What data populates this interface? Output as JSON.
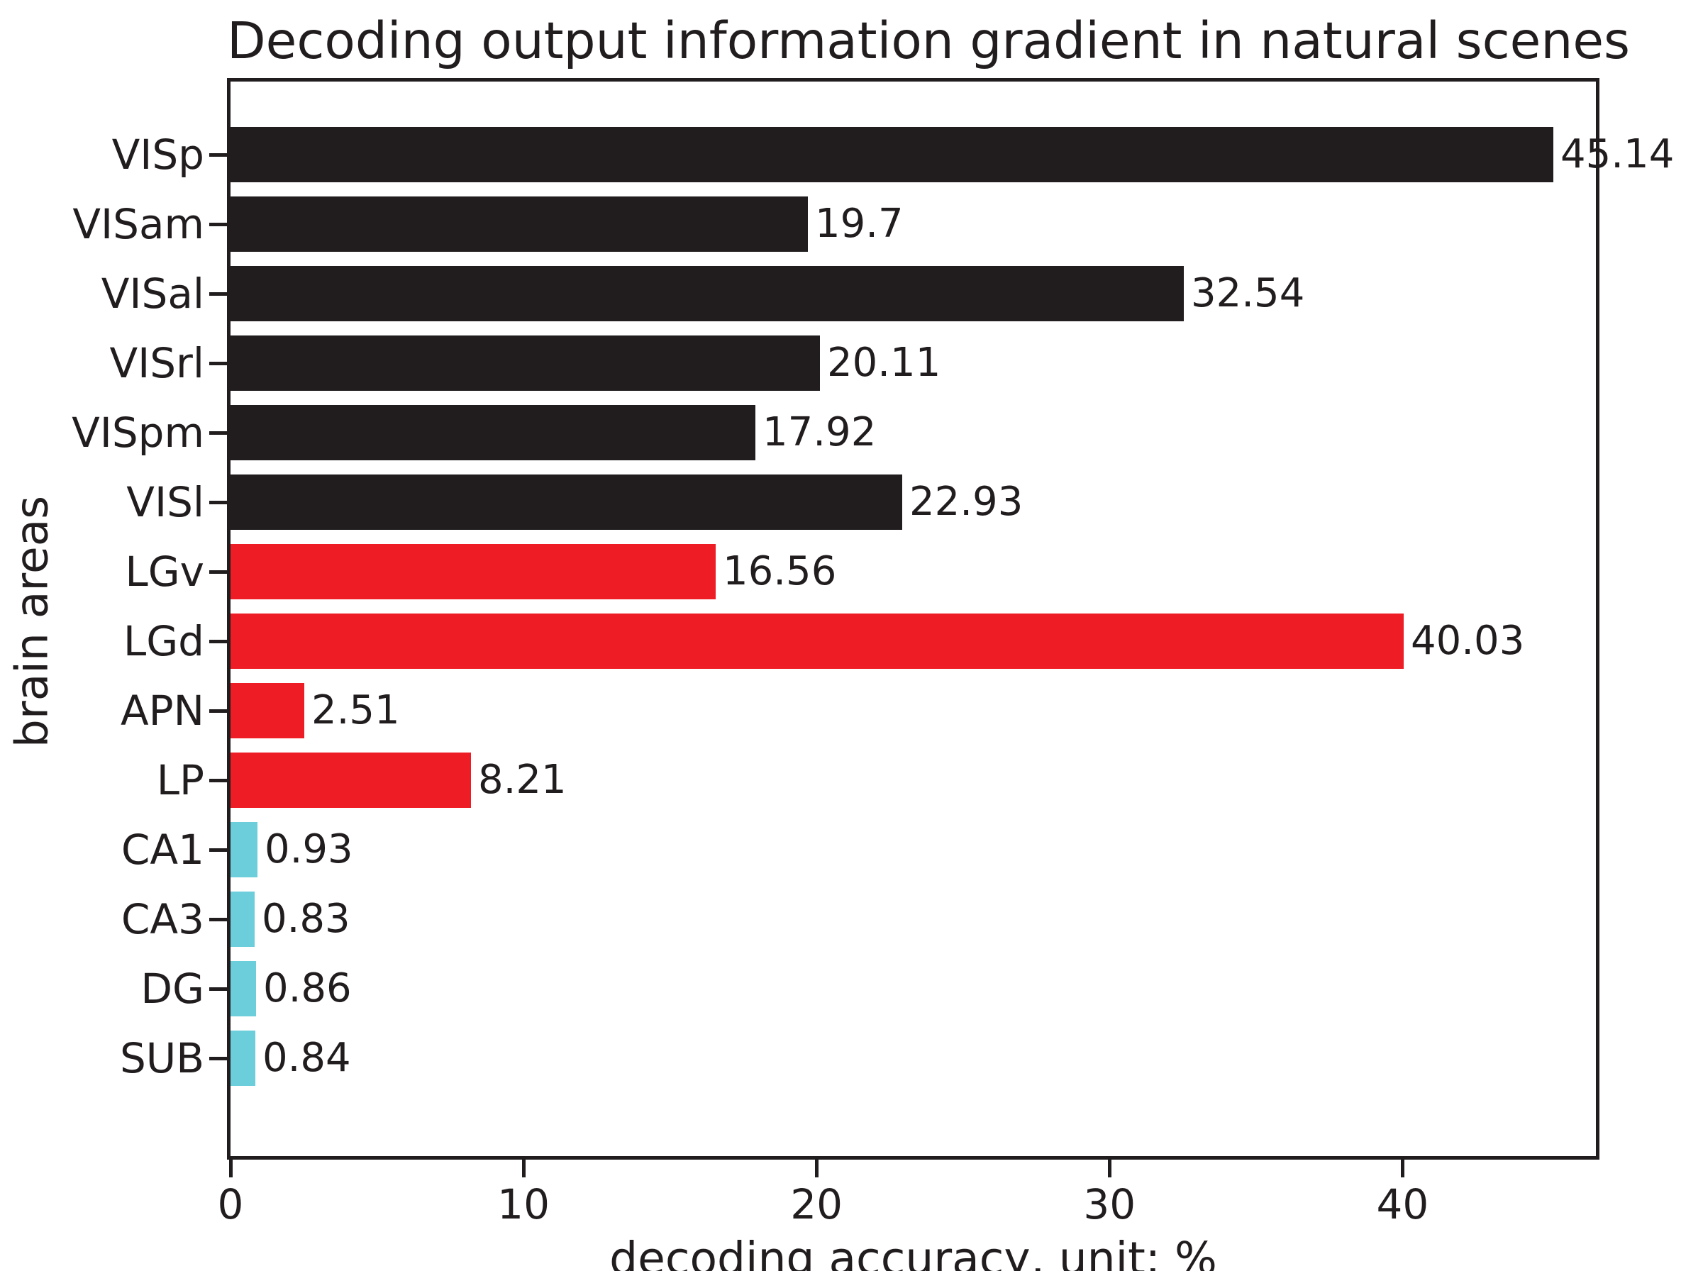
{
  "chart_data": {
    "type": "bar",
    "orientation": "horizontal",
    "title": "Decoding output information gradient in natural scenes",
    "xlabel": "decoding accuracy, unit: %",
    "ylabel": "brain areas",
    "categories": [
      "VISp",
      "VISam",
      "VISal",
      "VISrl",
      "VISpm",
      "VISl",
      "LGv",
      "LGd",
      "APN",
      "LP",
      "CA1",
      "CA3",
      "DG",
      "SUB"
    ],
    "values": [
      45.14,
      19.7,
      32.54,
      20.11,
      17.92,
      22.93,
      16.56,
      40.03,
      2.51,
      8.21,
      0.93,
      0.83,
      0.86,
      0.84
    ],
    "value_labels": [
      "45.14",
      "19.7",
      "32.54",
      "20.11",
      "17.92",
      "22.93",
      "16.56",
      "40.03",
      "2.51",
      "8.21",
      "0.93",
      "0.83",
      "0.86",
      "0.84"
    ],
    "bar_colors": [
      "#211d1e",
      "#211d1e",
      "#211d1e",
      "#211d1e",
      "#211d1e",
      "#211d1e",
      "#ee1d25",
      "#ee1d25",
      "#ee1d25",
      "#ee1d25",
      "#6dcedb",
      "#6dcedb",
      "#6dcedb",
      "#6dcedb"
    ],
    "color_legend": {
      "black": "#211d1e",
      "red": "#ee1d25",
      "lightblue": "#6dcedb"
    },
    "x_ticks": [
      0,
      10,
      20,
      30,
      40
    ],
    "x_tick_labels": [
      "0",
      "10",
      "20",
      "30",
      "40"
    ],
    "xlim": [
      0,
      46.6
    ],
    "grid": false,
    "legend": null
  }
}
